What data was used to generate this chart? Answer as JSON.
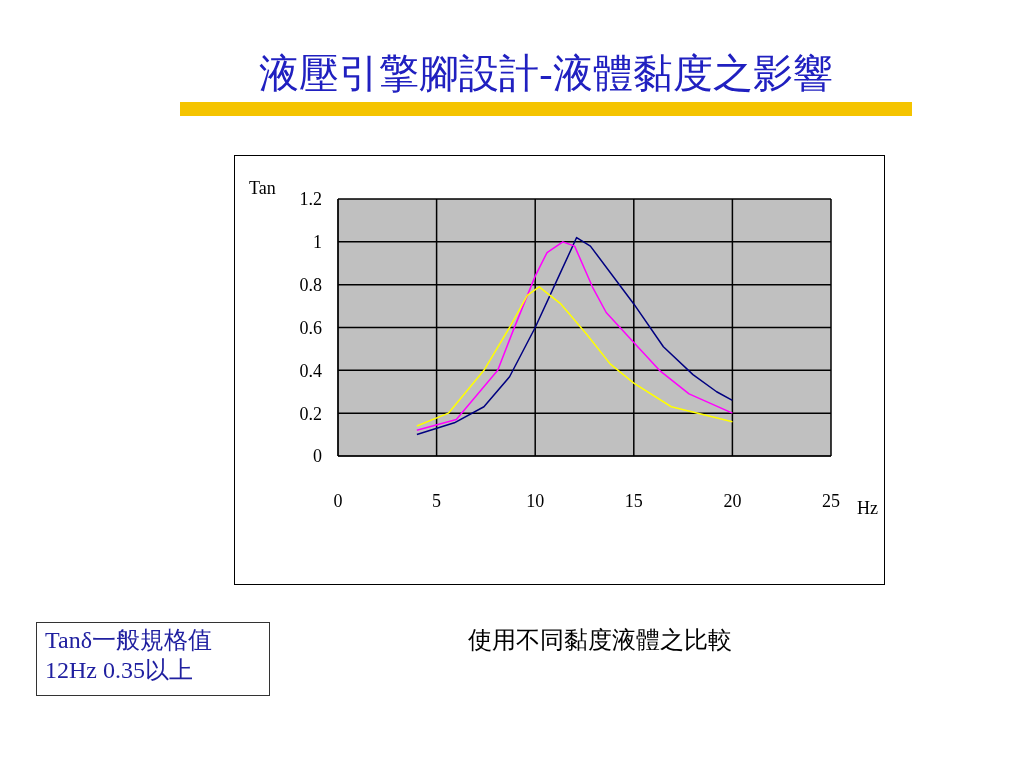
{
  "chart_data": {
    "type": "line",
    "title": "液壓引擎腳設計-液體黏度之影響",
    "xlabel": "Hz",
    "ylabel": "Tan",
    "xlim": [
      0,
      25
    ],
    "xticks": [
      0,
      5,
      10,
      15,
      20,
      25
    ],
    "ylim": [
      0,
      1.2
    ],
    "yticks": [
      0,
      0.2,
      0.4,
      0.6,
      0.8,
      1,
      1.2
    ],
    "grid": true,
    "marker": "none",
    "line_style": "solid",
    "series": [
      {
        "color": "#000080",
        "x": [
          4,
          5.9,
          7.4,
          8.7,
          10,
          11.1,
          12.1,
          12.8,
          15,
          16.5,
          18,
          19.2,
          20
        ],
        "values": [
          0.1,
          0.155,
          0.23,
          0.37,
          0.6,
          0.82,
          1.02,
          0.98,
          0.71,
          0.51,
          0.38,
          0.3,
          0.26
        ]
      },
      {
        "color": "#ff00ff",
        "x": [
          4,
          6,
          8.1,
          8.9,
          10,
          10.6,
          11.4,
          12,
          12.9,
          13.6,
          15,
          16.3,
          17.8,
          20
        ],
        "values": [
          0.12,
          0.17,
          0.4,
          0.59,
          0.84,
          0.95,
          1.0,
          0.98,
          0.79,
          0.67,
          0.53,
          0.4,
          0.29,
          0.2
        ]
      },
      {
        "color": "#ffff00",
        "x": [
          4,
          5.6,
          7.4,
          8.7,
          9.6,
          10.2,
          11.3,
          12.6,
          13.8,
          15,
          16.9,
          20
        ],
        "values": [
          0.14,
          0.2,
          0.4,
          0.6,
          0.75,
          0.79,
          0.71,
          0.57,
          0.43,
          0.34,
          0.23,
          0.16
        ]
      }
    ],
    "annotations": [
      "Tanδ一般規格值\n12Hz 0.35以上",
      "使用不同黏度液體之比較"
    ]
  }
}
